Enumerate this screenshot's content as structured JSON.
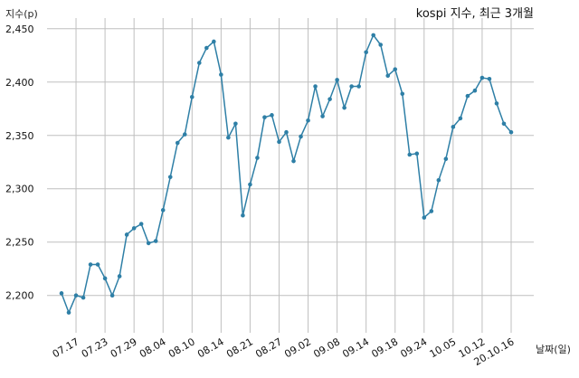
{
  "chart_data": {
    "type": "line",
    "title": "kospi 지수, 최근 3개월",
    "ylabel": "지수(p)",
    "xlabel": "날짜(일)",
    "ylim": [
      2165,
      2460
    ],
    "yticks": [
      2200,
      2250,
      2300,
      2350,
      2400,
      2450
    ],
    "yticklabels": [
      "2,200",
      "2,250",
      "2,300",
      "2,350",
      "2,400",
      "2,450"
    ],
    "grid": true,
    "series_color": "#2e7fa6",
    "xticks": [
      "07.17",
      "07.23",
      "07.29",
      "08.04",
      "08.10",
      "08.14",
      "08.21",
      "08.27",
      "09.02",
      "09.08",
      "09.14",
      "09.18",
      "09.24",
      "10.05",
      "10.12",
      "20.10.16"
    ],
    "xtick_index": [
      2,
      6,
      10,
      14,
      18,
      22,
      26,
      30,
      34,
      38,
      42,
      46,
      50,
      54,
      58,
      62
    ],
    "values": [
      2202,
      2184,
      2200,
      2198,
      2229,
      2229,
      2216,
      2200,
      2218,
      2257,
      2263,
      2267,
      2249,
      2251,
      2280,
      2311,
      2343,
      2351,
      2386,
      2418,
      2432,
      2438,
      2407,
      2348,
      2361,
      2275,
      2304,
      2329,
      2367,
      2369,
      2344,
      2353,
      2326,
      2349,
      2364,
      2396,
      2368,
      2384,
      2402,
      2376,
      2396,
      2396,
      2428,
      2444,
      2435,
      2406,
      2412,
      2389,
      2332,
      2333,
      2273,
      2279,
      2308,
      2328,
      2358,
      2366,
      2387,
      2392,
      2404,
      2403,
      2380,
      2361,
      2353
    ]
  }
}
